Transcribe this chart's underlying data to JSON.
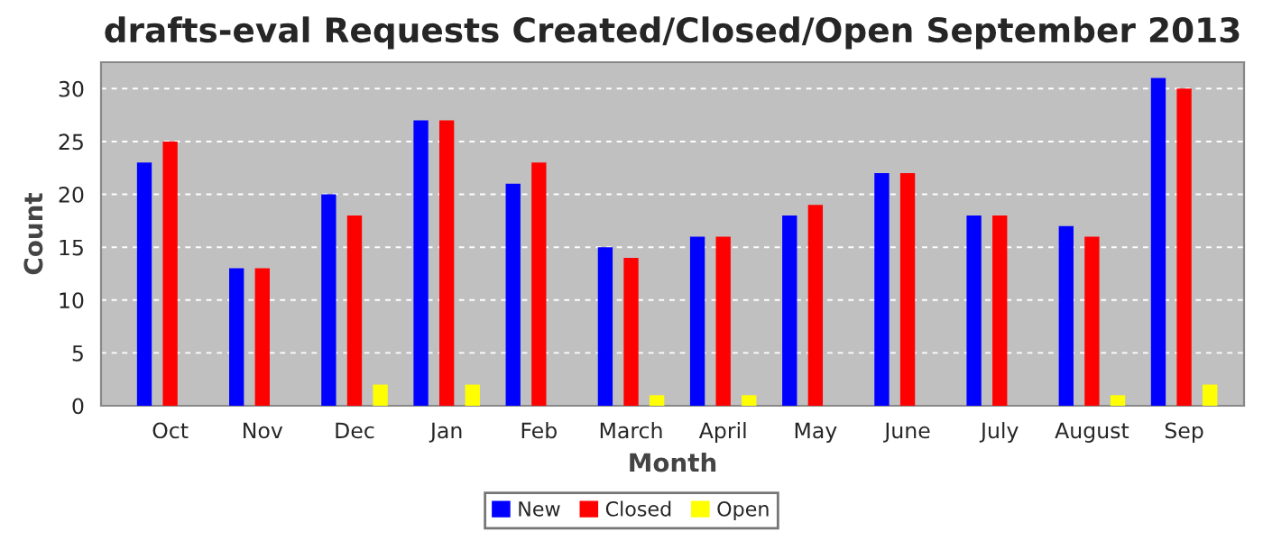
{
  "chart_data": {
    "type": "bar",
    "title": "drafts-eval Requests Created/Closed/Open September 2013",
    "xlabel": "Month",
    "ylabel": "Count",
    "categories": [
      "Oct",
      "Nov",
      "Dec",
      "Jan",
      "Feb",
      "March",
      "April",
      "May",
      "June",
      "July",
      "August",
      "Sep"
    ],
    "series": [
      {
        "name": "New",
        "color": "#0000ff",
        "values": [
          23,
          13,
          20,
          27,
          21,
          15,
          16,
          18,
          22,
          18,
          17,
          31
        ]
      },
      {
        "name": "Closed",
        "color": "#ff0000",
        "values": [
          25,
          13,
          18,
          27,
          23,
          14,
          16,
          19,
          22,
          18,
          16,
          30
        ]
      },
      {
        "name": "Open",
        "color": "#ffff00",
        "values": [
          0,
          0,
          2,
          2,
          0,
          1,
          1,
          0,
          0,
          0,
          1,
          2
        ]
      }
    ],
    "ylim": [
      0,
      32.5
    ],
    "yticks": [
      0,
      5,
      10,
      15,
      20,
      25,
      30
    ],
    "grid": "y",
    "legend": "bottom"
  }
}
